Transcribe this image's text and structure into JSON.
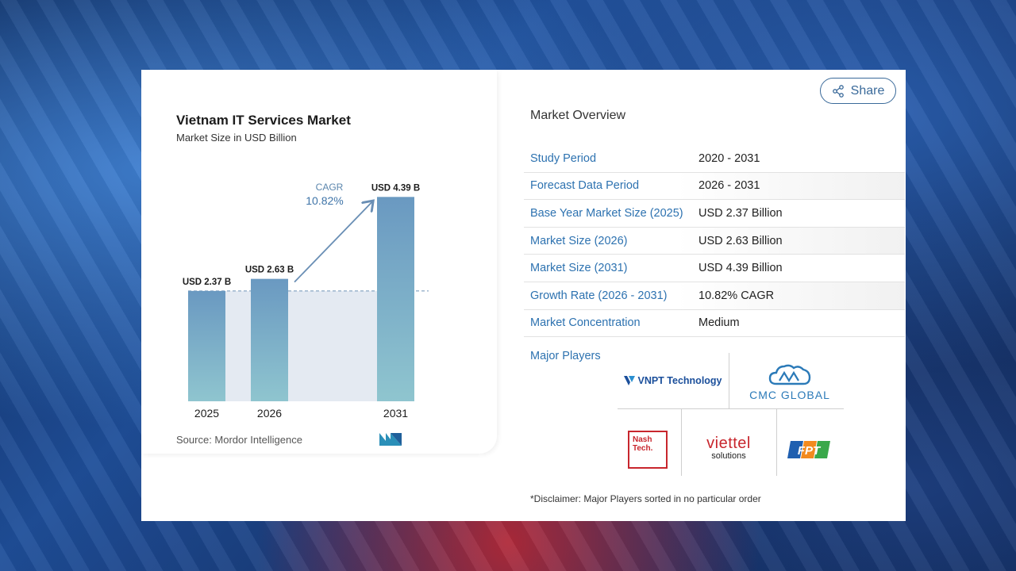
{
  "share": {
    "label": "Share"
  },
  "chart": {
    "title": "Vietnam IT Services Market",
    "subtitle": "Market Size in USD Billion",
    "source": "Source: Mordor Intelligence",
    "cagr_label": "CAGR",
    "cagr_value": "10.82%"
  },
  "chart_data": {
    "type": "bar",
    "title": "Vietnam IT Services Market",
    "subtitle": "Market Size in USD Billion",
    "categories": [
      "2025",
      "2026",
      "2031"
    ],
    "values": [
      2.37,
      2.63,
      4.39
    ],
    "data_labels": [
      "USD 2.37 B",
      "USD 2.63 B",
      "USD 4.39 B"
    ],
    "ylim": [
      0,
      4.6
    ],
    "grid": false,
    "annotations": [
      "CAGR",
      "10.82%"
    ]
  },
  "overview": {
    "title": "Market Overview",
    "rows": [
      {
        "key": "Study Period",
        "value": "2020 - 2031"
      },
      {
        "key": "Forecast Data Period",
        "value": "2026 - 2031"
      },
      {
        "key": "Base Year Market Size (2025)",
        "value": "USD 2.37 Billion"
      },
      {
        "key": "Market Size (2026)",
        "value": "USD 2.63 Billion"
      },
      {
        "key": "Market Size (2031)",
        "value": "USD 4.39 Billion"
      },
      {
        "key": "Growth Rate (2026 - 2031)",
        "value": "10.82% CAGR"
      },
      {
        "key": "Market Concentration",
        "value": "Medium"
      }
    ],
    "major_players_label": "Major Players",
    "players": {
      "vnpt": "VNPT Technology",
      "cmc": "CMC GLOBAL",
      "nash": "Nash Tech.",
      "viettel_main": "viettel",
      "viettel_sub": "solutions",
      "fpt": "FPT"
    },
    "disclaimer": "*Disclaimer: Major Players sorted in no particular order"
  },
  "colors": {
    "bar_top": "#6a99c1",
    "bar_bottom": "#8fc5cf",
    "accent": "#2d72b0",
    "brand_red": "#c8262d"
  }
}
